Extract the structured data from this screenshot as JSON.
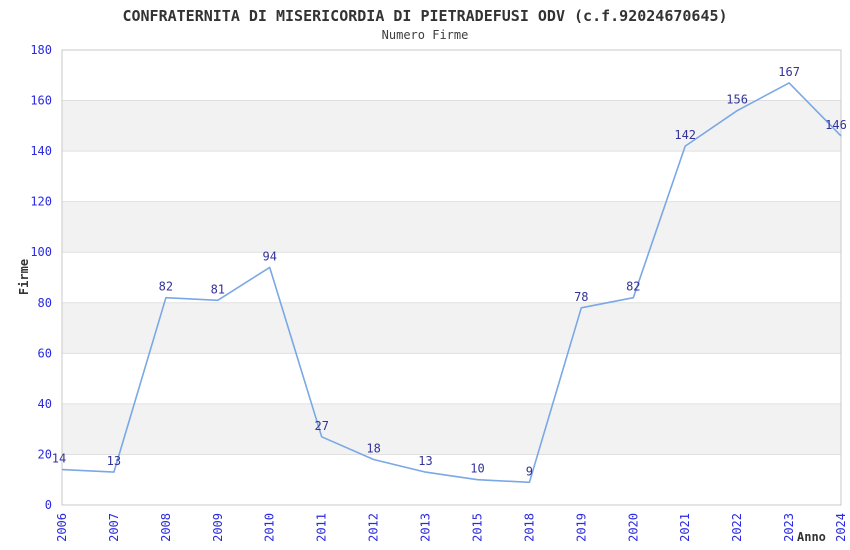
{
  "chart_data": {
    "type": "line",
    "title": "CONFRATERNITA DI MISERICORDIA DI PIETRADEFUSI ODV (c.f.92024670645)",
    "subtitle": "Numero Firme",
    "xlabel": "Anno",
    "ylabel": "Firme",
    "categories": [
      "2006",
      "2007",
      "2008",
      "2009",
      "2010",
      "2011",
      "2012",
      "2013",
      "2015",
      "2018",
      "2019",
      "2020",
      "2021",
      "2022",
      "2023",
      "2024"
    ],
    "values": [
      14,
      13,
      82,
      81,
      94,
      27,
      18,
      13,
      10,
      9,
      78,
      82,
      142,
      156,
      167,
      146
    ],
    "ylim": [
      0,
      180
    ],
    "ytick_step": 20,
    "grid": "horizontal-bands-alternating",
    "legend": "none",
    "markers": "none",
    "data_labels": "above-points",
    "colors": {
      "line": "#7aa8e6",
      "data_label": "#333399",
      "tick_label": "#2a2ae0",
      "band": "#f2f2f2",
      "grid_line": "#e0e0e0",
      "plot_border": "#c9c9c9",
      "title_text": "#333333",
      "background": "#ffffff"
    }
  }
}
